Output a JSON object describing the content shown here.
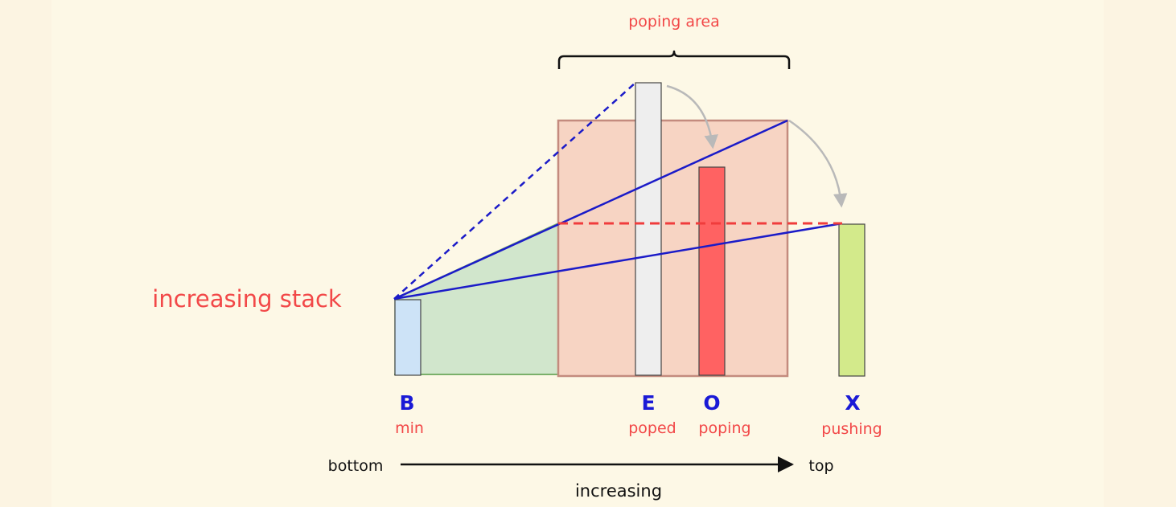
{
  "diagram": {
    "title_label": "increasing stack",
    "popping_area_label": "poping area",
    "bars": [
      {
        "letter": "B",
        "sublabel": "min",
        "fill": "#cde3f7"
      },
      {
        "letter": "E",
        "sublabel": "poped",
        "fill": "#eeeeee"
      },
      {
        "letter": "O",
        "sublabel": "poping",
        "fill": "#ff6262"
      },
      {
        "letter": "X",
        "sublabel": "pushing",
        "fill": "#d3ea8b"
      }
    ],
    "axis": {
      "start_label": "bottom",
      "end_label": "top",
      "caption": "increasing"
    },
    "colors": {
      "background": "#fdf8e6",
      "label_red": "#f24848",
      "letter_blue": "#1a1ad6",
      "line_blue": "#1b1bc8",
      "dashed_red": "#f03c3c",
      "popping_area_fill": "#f7c3b4",
      "green_area_fill": "#c9e3c7",
      "arrow_gray": "#b9b9b9"
    }
  }
}
